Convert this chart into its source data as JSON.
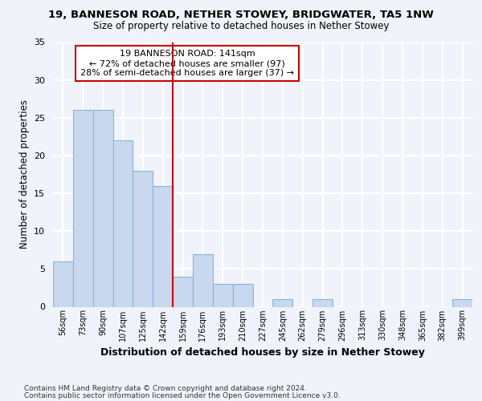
{
  "title1": "19, BANNESON ROAD, NETHER STOWEY, BRIDGWATER, TA5 1NW",
  "title2": "Size of property relative to detached houses in Nether Stowey",
  "xlabel": "Distribution of detached houses by size in Nether Stowey",
  "ylabel": "Number of detached properties",
  "footnote1": "Contains HM Land Registry data © Crown copyright and database right 2024.",
  "footnote2": "Contains public sector information licensed under the Open Government Licence v3.0.",
  "annotation_line1": "19 BANNESON ROAD: 141sqm",
  "annotation_line2": "← 72% of detached houses are smaller (97)",
  "annotation_line3": "28% of semi-detached houses are larger (37) →",
  "bar_labels": [
    "56sqm",
    "73sqm",
    "90sqm",
    "107sqm",
    "125sqm",
    "142sqm",
    "159sqm",
    "176sqm",
    "193sqm",
    "210sqm",
    "227sqm",
    "245sqm",
    "262sqm",
    "279sqm",
    "296sqm",
    "313sqm",
    "330sqm",
    "348sqm",
    "365sqm",
    "382sqm",
    "399sqm"
  ],
  "bar_values": [
    6,
    26,
    26,
    22,
    18,
    16,
    4,
    7,
    3,
    3,
    0,
    1,
    0,
    1,
    0,
    0,
    0,
    0,
    0,
    0,
    1
  ],
  "bar_color": "#c8d8ee",
  "bar_edge_color": "#8ab4d8",
  "vline_index": 5,
  "vline_color": "#cc0000",
  "background_color": "#f0f4fa",
  "plot_bg_color": "#f0f4fa",
  "grid_color": "#ffffff",
  "annotation_box_color": "#ffffff",
  "annotation_box_edge": "#cc0000",
  "ylim": [
    0,
    35
  ],
  "yticks": [
    0,
    5,
    10,
    15,
    20,
    25,
    30,
    35
  ]
}
